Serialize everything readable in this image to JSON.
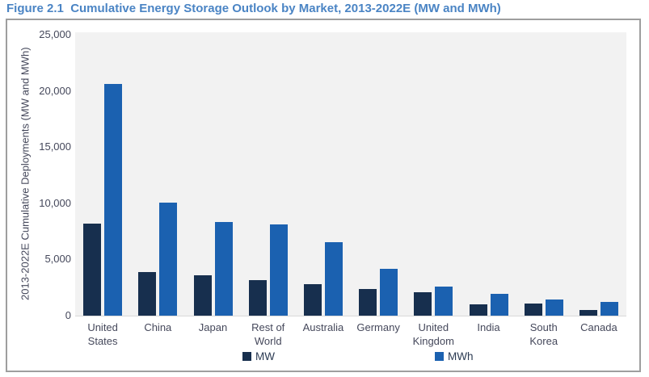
{
  "title": "Figure 2.1  Cumulative Energy Storage Outlook by Market, 2013-2022E (MW and MWh)",
  "chart_data": {
    "type": "bar",
    "title": "Cumulative Energy Storage Outlook by Market, 2013-2022E (MW and MWh)",
    "xlabel": "",
    "ylabel": "2013-2022E Cumulative Deployments (MW and MWh)",
    "ylim": [
      0,
      25000
    ],
    "grid": false,
    "legend_position": "bottom",
    "plot_background": "#f2f2f2",
    "yticks": [
      {
        "value": 0,
        "label": "0"
      },
      {
        "value": 5000,
        "label": "5,000"
      },
      {
        "value": 10000,
        "label": "10,000"
      },
      {
        "value": 15000,
        "label": "15,000"
      },
      {
        "value": 20000,
        "label": "20,000"
      },
      {
        "value": 25000,
        "label": "25,000"
      }
    ],
    "categories": [
      "United States",
      "China",
      "Japan",
      "Rest of World",
      "Australia",
      "Germany",
      "United Kingdom",
      "India",
      "South Korea",
      "Canada"
    ],
    "series": [
      {
        "name": "MW",
        "color": "#172f4e",
        "values": [
          8200,
          3900,
          3600,
          3150,
          2800,
          2400,
          2050,
          1000,
          1100,
          500
        ]
      },
      {
        "name": "MWh",
        "color": "#1b61b0",
        "values": [
          20600,
          10050,
          8300,
          8100,
          6550,
          4200,
          2600,
          1950,
          1450,
          1250
        ]
      }
    ]
  },
  "legend": {
    "items": [
      {
        "label": "MW",
        "color": "#172f4e"
      },
      {
        "label": "MWh",
        "color": "#1b61b0"
      }
    ]
  },
  "colors": {
    "title_blue": "#4a84c4",
    "axis_text": "#45485b",
    "box_border": "#9e9e9e",
    "plot_bg": "#f2f2f2"
  }
}
